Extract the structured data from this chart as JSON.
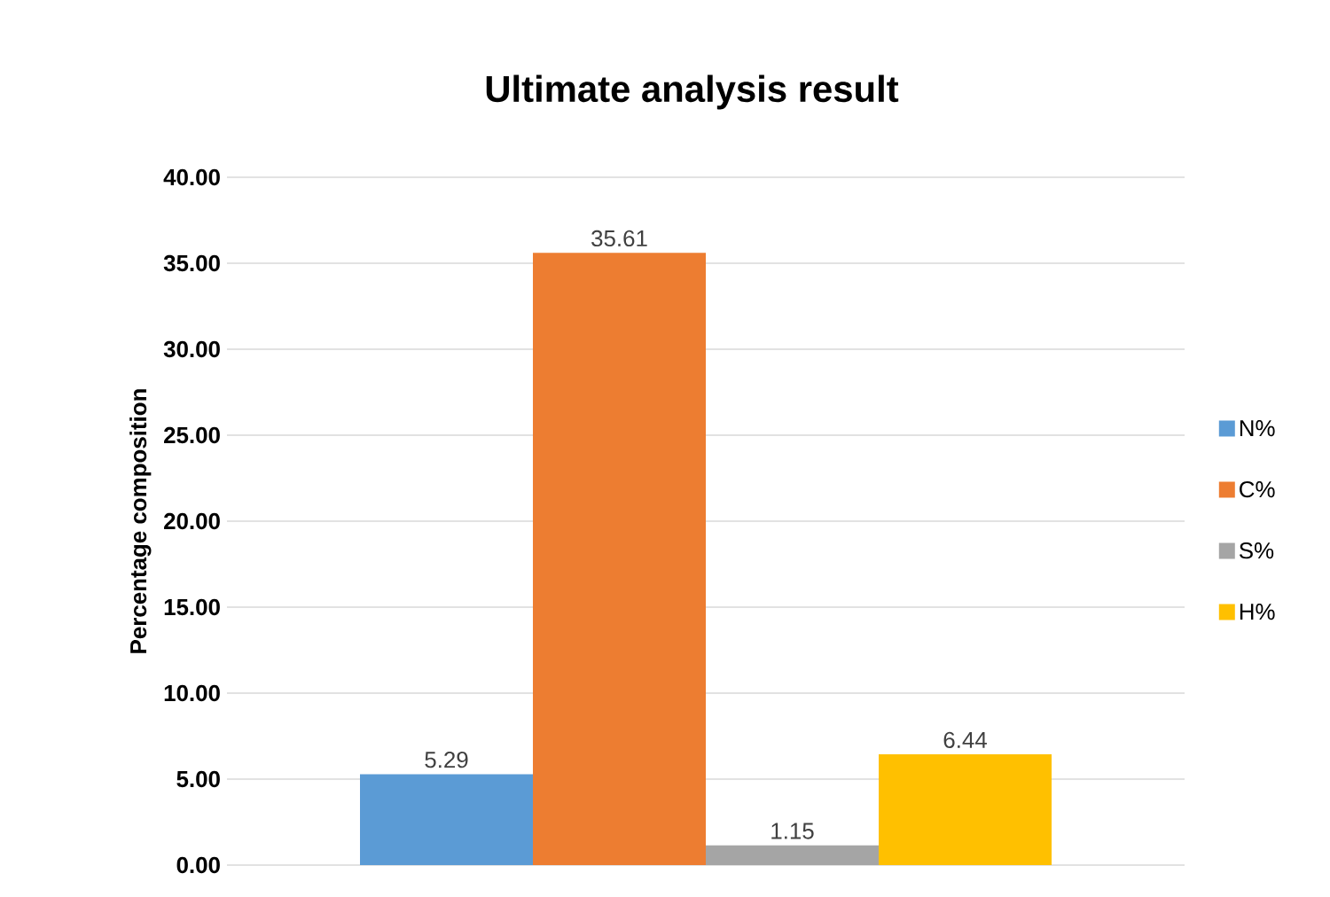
{
  "chart_data": {
    "type": "bar",
    "title": "Ultimate  analysis result",
    "ylabel": "Percentage composition",
    "categories": [
      null
    ],
    "series": [
      {
        "name": "N%",
        "color": "#5b9bd5",
        "values": [
          5.29
        ]
      },
      {
        "name": "C%",
        "color": "#ed7d31",
        "values": [
          35.61
        ]
      },
      {
        "name": "S%",
        "color": "#a5a5a5",
        "values": [
          1.15
        ]
      },
      {
        "name": "H%",
        "color": "#ffc000",
        "values": [
          6.44
        ]
      }
    ],
    "ylim": [
      0,
      40
    ],
    "yticks": [
      {
        "value": 0,
        "label": "0.00"
      },
      {
        "value": 5,
        "label": "5.00"
      },
      {
        "value": 10,
        "label": "10.00"
      },
      {
        "value": 15,
        "label": "15.00"
      },
      {
        "value": 20,
        "label": "20.00"
      },
      {
        "value": 25,
        "label": "25.00"
      },
      {
        "value": 30,
        "label": "30.00"
      },
      {
        "value": 35,
        "label": "35.00"
      },
      {
        "value": 40,
        "label": "40.00"
      }
    ],
    "grid": "y",
    "legend": "right",
    "data_labels": true
  }
}
